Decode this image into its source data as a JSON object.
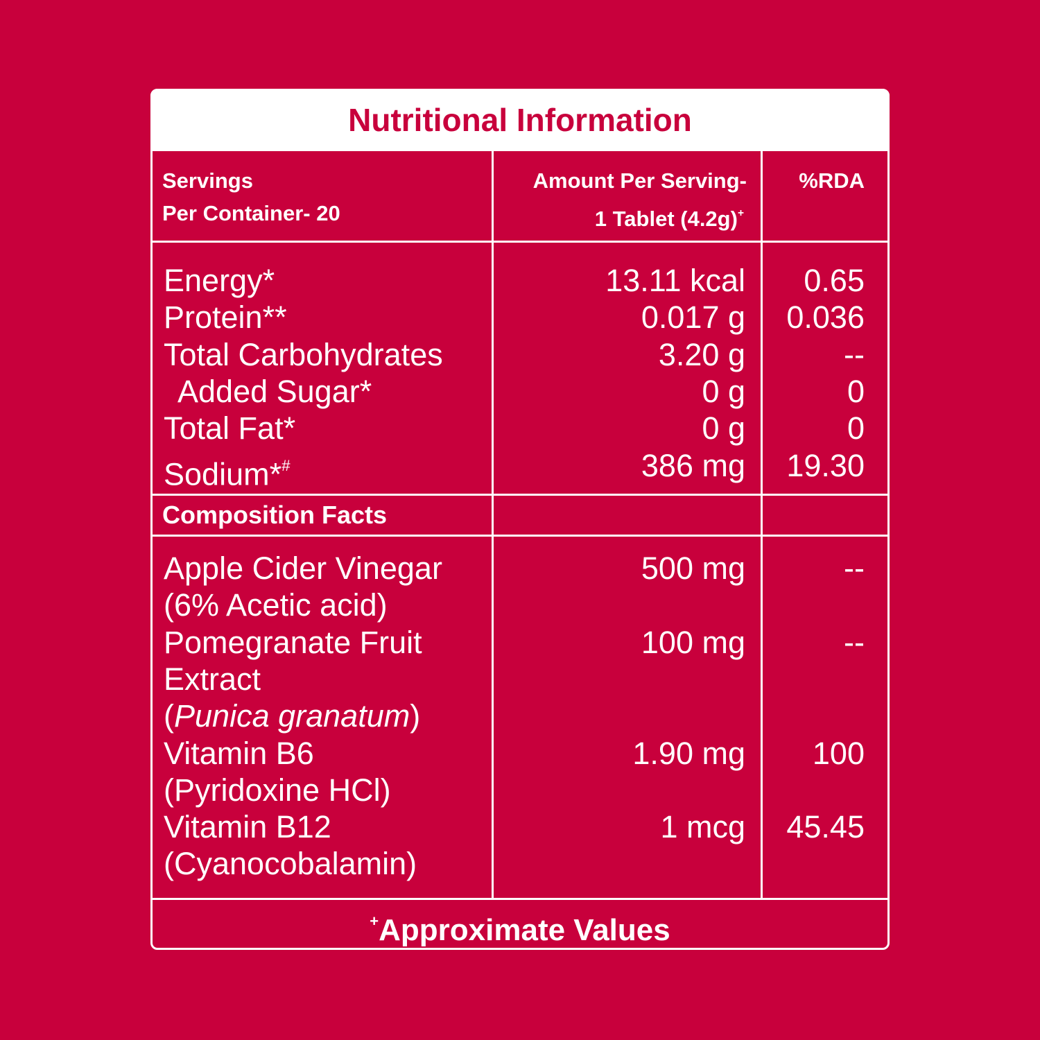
{
  "title": "Nutritional Information",
  "header": {
    "servings": [
      "Servings",
      "Per Container- 20"
    ],
    "amount": [
      "Amount Per Serving-",
      "1 Tablet (4.2g)"
    ],
    "amount_sup": "+",
    "rda": "%RDA"
  },
  "nutrition_rows": [
    {
      "name": "Energy*",
      "amount": "13.11 kcal",
      "rda": "0.65"
    },
    {
      "name": "Protein**",
      "amount": "0.017 g",
      "rda": "0.036"
    },
    {
      "name": "Total Carbohydrates",
      "amount": "3.20 g",
      "rda": "--"
    },
    {
      "name": "Added Sugar*",
      "level": 1,
      "amount": "0 g",
      "rda": "0"
    },
    {
      "name": "Total Fat*",
      "amount": "0 g",
      "rda": "0"
    },
    {
      "name": "Sodium*",
      "name_sup": "#",
      "amount": "386 mg",
      "rda": "19.30"
    }
  ],
  "composition_title": "Composition Facts",
  "composition_rows": [
    {
      "name_lines": [
        "Apple Cider Vinegar",
        "(6% Acetic acid)"
      ],
      "amount": "500 mg",
      "rda": "--"
    },
    {
      "name_lines": [
        "Pomegranate Fruit",
        "Extract"
      ],
      "latin_open": "(",
      "latin": "Punica granatum",
      "latin_close": ")",
      "amount": "100 mg",
      "rda": "--"
    },
    {
      "name_lines": [
        "Vitamin B6",
        "(Pyridoxine HCl)"
      ],
      "amount": "1.90 mg",
      "rda": "100"
    },
    {
      "name_lines": [
        "Vitamin B12",
        "(Cyanocobalamin)"
      ],
      "amount": "1 mcg",
      "rda": "45.45"
    }
  ],
  "footer": {
    "sup": "+",
    "text": "Approximate Values"
  }
}
